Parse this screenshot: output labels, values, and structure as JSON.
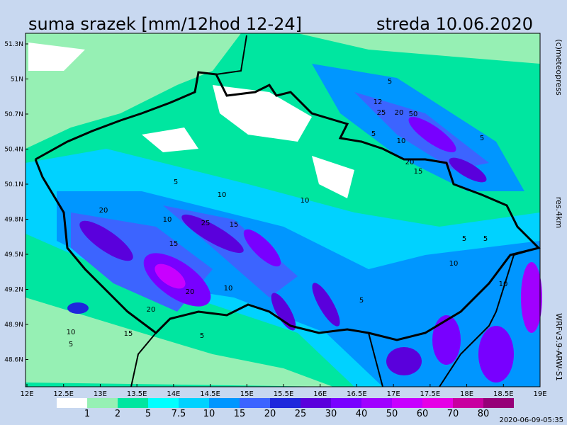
{
  "header": {
    "title": "suma srazek [mm/12hod 12-24]",
    "date": "streda 10.06.2020"
  },
  "map": {
    "lat_labels": [
      "51.3N",
      "51N",
      "50.7N",
      "50.4N",
      "50.1N",
      "49.8N",
      "49.5N",
      "49.2N",
      "48.9N",
      "48.6N"
    ],
    "lon_labels": [
      "12E",
      "12.5E",
      "13E",
      "13.5E",
      "14E",
      "14.5E",
      "15E",
      "15.5E",
      "16E",
      "16.5E",
      "17E",
      "17.5E",
      "18E",
      "18.5E",
      "19E"
    ],
    "contour_labels": [
      "5",
      "12",
      "25",
      "20",
      "50",
      "5",
      "10",
      "20",
      "15",
      "5",
      "5",
      "10",
      "10",
      "10",
      "20",
      "25",
      "15",
      "15",
      "20",
      "20",
      "10",
      "15",
      "5",
      "10",
      "5",
      "5",
      "10",
      "10",
      "5",
      "5"
    ]
  },
  "side": {
    "copyright": "(c)meteopress",
    "resolution": "res.4km",
    "model": "WRFv3.9-ARW-S1"
  },
  "colorbar": {
    "labels": [
      "1",
      "2",
      "5",
      "7.5",
      "10",
      "15",
      "20",
      "25",
      "30",
      "40",
      "50",
      "60",
      "70",
      "80"
    ],
    "colors": [
      "#ffffff",
      "#96f0b4",
      "#00e6a0",
      "#00ffff",
      "#00d2ff",
      "#0096ff",
      "#3c64ff",
      "#1e28dc",
      "#5a00dc",
      "#7800ff",
      "#a000ff",
      "#c800ff",
      "#e600e6",
      "#c800a0",
      "#960078"
    ]
  },
  "footer": {
    "timestamp": "2020-06-09-05:35"
  }
}
